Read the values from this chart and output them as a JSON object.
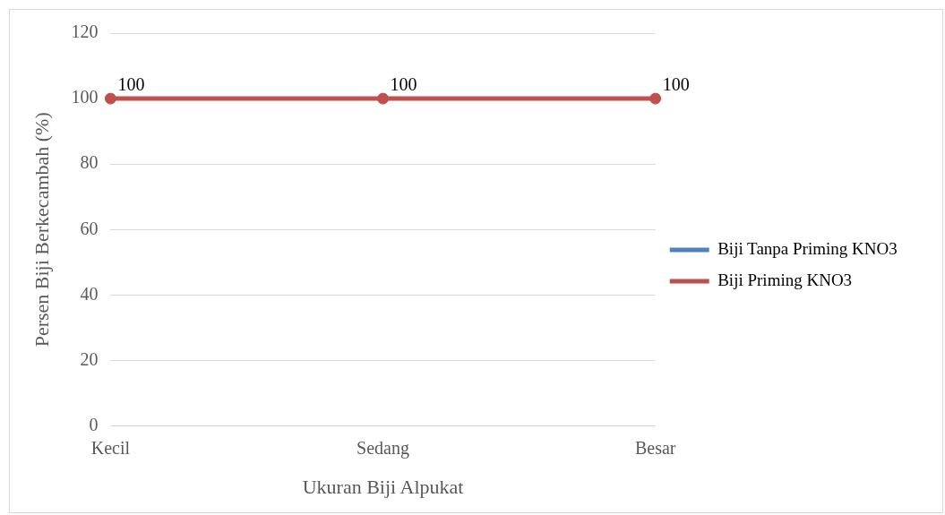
{
  "chart_data": {
    "type": "line",
    "xlabel": "Ukuran Biji Alpukat",
    "ylabel": "Persen Biji Berkecambah (%)",
    "categories": [
      "Kecil",
      "Sedang",
      "Besar"
    ],
    "series": [
      {
        "name": "Biji Tanpa Priming KNO3",
        "color": "#4f81bd",
        "values": [
          null,
          null,
          null
        ]
      },
      {
        "name": "Biji Priming KNO3",
        "color": "#c0504d",
        "values": [
          100,
          100,
          100
        ]
      }
    ],
    "ylim": [
      0,
      120
    ],
    "yticks": [
      0,
      20,
      40,
      60,
      80,
      100,
      120
    ],
    "grid": "y",
    "legend": "right",
    "marker": "circle",
    "line_style": "solid",
    "data_labels": true
  }
}
